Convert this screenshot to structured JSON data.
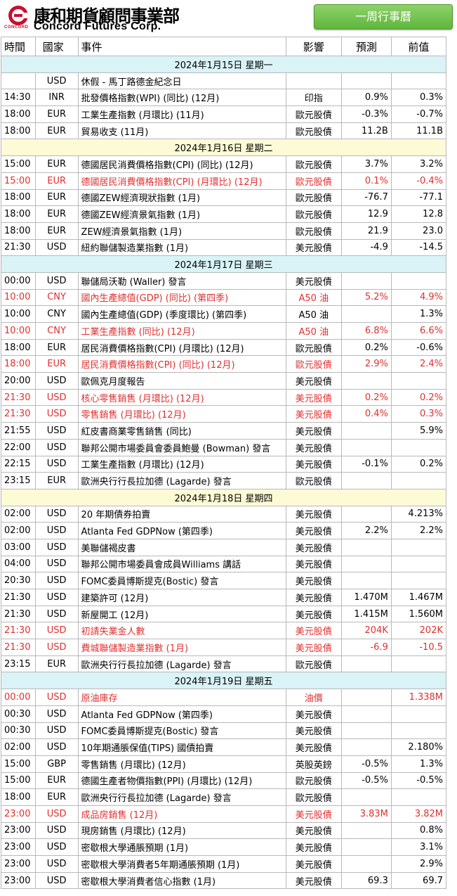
{
  "header": {
    "brand_cn": "康和期貨顧問事業部",
    "brand_en": "Concord Futures Corp.",
    "logo_text": "CONCORD",
    "title_badge": "一周行事曆"
  },
  "columns": [
    "時間",
    "國家",
    "事件",
    "影響",
    "預測",
    "前值"
  ],
  "days": [
    {
      "date": "2024年1月15日  星期一",
      "events": [
        {
          "time": "",
          "country": "USD",
          "event": "休假 - 馬丁路德金紀念日",
          "impact": "",
          "forecast": "",
          "previous": "",
          "highlight": false
        },
        {
          "time": "14:30",
          "country": "INR",
          "event": "批發價格指數(WPI) (同比) (12月)",
          "impact": "印指",
          "forecast": "0.9%",
          "previous": "0.3%",
          "highlight": false
        },
        {
          "time": "18:00",
          "country": "EUR",
          "event": "工業生產指數 (月環比) (11月)",
          "impact": "歐元股債",
          "forecast": "-0.3%",
          "previous": "-0.7%",
          "highlight": false
        },
        {
          "time": "18:00",
          "country": "EUR",
          "event": "貿易收支 (11月)",
          "impact": "歐元股債",
          "forecast": "11.2B",
          "previous": "11.1B",
          "highlight": false
        }
      ]
    },
    {
      "date": "2024年1月16日  星期二",
      "events": [
        {
          "time": "15:00",
          "country": "EUR",
          "event": "德國居民消費價格指數(CPI) (同比) (12月)",
          "impact": "歐元股債",
          "forecast": "3.7%",
          "previous": "3.2%",
          "highlight": false
        },
        {
          "time": "15:00",
          "country": "EUR",
          "event": "德國居民消費價格指數(CPI) (月環比) (12月)",
          "impact": "歐元股債",
          "forecast": "0.1%",
          "previous": "-0.4%",
          "highlight": true
        },
        {
          "time": "18:00",
          "country": "EUR",
          "event": "德國ZEW經濟現狀指數 (1月)",
          "impact": "歐元股債",
          "forecast": "-76.7",
          "previous": "-77.1",
          "highlight": false
        },
        {
          "time": "18:00",
          "country": "EUR",
          "event": "德國ZEW經濟景氣指數 (1月)",
          "impact": "歐元股債",
          "forecast": "12.9",
          "previous": "12.8",
          "highlight": false
        },
        {
          "time": "18:00",
          "country": "EUR",
          "event": "ZEW經濟景氣指數 (1月)",
          "impact": "歐元股債",
          "forecast": "21.9",
          "previous": "23.0",
          "highlight": false
        },
        {
          "time": "21:30",
          "country": "USD",
          "event": "紐約聯儲製造業指數 (1月)",
          "impact": "美元股債",
          "forecast": "-4.9",
          "previous": "-14.5",
          "highlight": false
        }
      ]
    },
    {
      "date": "2024年1月17日  星期三",
      "events": [
        {
          "time": "00:00",
          "country": "USD",
          "event": "聯儲局沃勒 (Waller) 發言",
          "impact": "美元股債",
          "forecast": "",
          "previous": "",
          "highlight": false
        },
        {
          "time": "10:00",
          "country": "CNY",
          "event": "國內生產總值(GDP) (同比) (第四季)",
          "impact": "A50 油",
          "forecast": "5.2%",
          "previous": "4.9%",
          "highlight": true
        },
        {
          "time": "10:00",
          "country": "CNY",
          "event": "國內生產總值(GDP) (季度環比) (第四季)",
          "impact": "A50 油",
          "forecast": "",
          "previous": "1.3%",
          "highlight": false
        },
        {
          "time": "10:00",
          "country": "CNY",
          "event": "工業生產指數 (同比) (12月)",
          "impact": "A50 油",
          "forecast": "6.8%",
          "previous": "6.6%",
          "highlight": true
        },
        {
          "time": "18:00",
          "country": "EUR",
          "event": "居民消費價格指數(CPI) (月環比) (12月)",
          "impact": "歐元股債",
          "forecast": "0.2%",
          "previous": "-0.6%",
          "highlight": false
        },
        {
          "time": "18:00",
          "country": "EUR",
          "event": "居民消費價格指數(CPI) (同比) (12月)",
          "impact": "歐元股債",
          "forecast": "2.9%",
          "previous": "2.4%",
          "highlight": true
        },
        {
          "time": "20:00",
          "country": "USD",
          "event": "歐佩克月度報告",
          "impact": "美元股債",
          "forecast": "",
          "previous": "",
          "highlight": false
        },
        {
          "time": "21:30",
          "country": "USD",
          "event": "核心零售銷售 (月環比) (12月)",
          "impact": "美元股債",
          "forecast": "0.2%",
          "previous": "0.2%",
          "highlight": true
        },
        {
          "time": "21:30",
          "country": "USD",
          "event": "零售銷售 (月環比) (12月)",
          "impact": "美元股債",
          "forecast": "0.4%",
          "previous": "0.3%",
          "highlight": true
        },
        {
          "time": "21:55",
          "country": "USD",
          "event": "紅皮書商業零售銷售 (同比)",
          "impact": "美元股債",
          "forecast": "",
          "previous": "5.9%",
          "highlight": false
        },
        {
          "time": "22:00",
          "country": "USD",
          "event": "聯邦公開市場委員會委員鮑曼 (Bowman) 發言",
          "impact": "美元股債",
          "forecast": "",
          "previous": "",
          "highlight": false
        },
        {
          "time": "22:15",
          "country": "USD",
          "event": "工業生產指數 (月環比) (12月)",
          "impact": "美元股債",
          "forecast": "-0.1%",
          "previous": "0.2%",
          "highlight": false
        },
        {
          "time": "23:15",
          "country": "EUR",
          "event": "歐洲央行行長拉加德 (Lagarde) 發言",
          "impact": "歐元股債",
          "forecast": "",
          "previous": "",
          "highlight": false
        }
      ]
    },
    {
      "date": "2024年1月18日  星期四",
      "events": [
        {
          "time": "02:00",
          "country": "USD",
          "event": "20 年期債券拍賣",
          "impact": "美元股債",
          "forecast": "",
          "previous": "4.213%",
          "highlight": false
        },
        {
          "time": "02:00",
          "country": "USD",
          "event": "Atlanta Fed GDPNow (第四季)",
          "impact": "美元股債",
          "forecast": "2.2%",
          "previous": "2.2%",
          "highlight": false
        },
        {
          "time": "03:00",
          "country": "USD",
          "event": "美聯儲褐皮書",
          "impact": "美元股債",
          "forecast": "",
          "previous": "",
          "highlight": false
        },
        {
          "time": "04:00",
          "country": "USD",
          "event": "聯邦公開市場委員會成員Williams 講話",
          "impact": "美元股債",
          "forecast": "",
          "previous": "",
          "highlight": false
        },
        {
          "time": "20:30",
          "country": "USD",
          "event": "FOMC委員博斯提克(Bostic) 發言",
          "impact": "美元股債",
          "forecast": "",
          "previous": "",
          "highlight": false
        },
        {
          "time": "21:30",
          "country": "USD",
          "event": "建築許可 (12月)",
          "impact": "美元股債",
          "forecast": "1.470M",
          "previous": "1.467M",
          "highlight": false
        },
        {
          "time": "21:30",
          "country": "USD",
          "event": "新屋開工 (12月)",
          "impact": "美元股債",
          "forecast": "1.415M",
          "previous": "1.560M",
          "highlight": false
        },
        {
          "time": "21:30",
          "country": "USD",
          "event": "初請失業金人數",
          "impact": "美元股債",
          "forecast": "204K",
          "previous": "202K",
          "highlight": true
        },
        {
          "time": "21:30",
          "country": "USD",
          "event": "費城聯儲製造業指數 (1月)",
          "impact": "美元股債",
          "forecast": "-6.9",
          "previous": "-10.5",
          "highlight": true
        },
        {
          "time": "23:15",
          "country": "EUR",
          "event": "歐洲央行行長拉加德 (Lagarde) 發言",
          "impact": "歐元股債",
          "forecast": "",
          "previous": "",
          "highlight": false
        }
      ]
    },
    {
      "date": "2024年1月19日  星期五",
      "events": [
        {
          "time": "00:00",
          "country": "USD",
          "event": "原油庫存",
          "impact": "油價",
          "forecast": "",
          "previous": "1.338M",
          "highlight": true
        },
        {
          "time": "00:30",
          "country": "USD",
          "event": "Atlanta Fed GDPNow (第四季)",
          "impact": "美元股債",
          "forecast": "",
          "previous": "",
          "highlight": false
        },
        {
          "time": "00:30",
          "country": "USD",
          "event": "FOMC委員博斯提克(Bostic) 發言",
          "impact": "美元股債",
          "forecast": "",
          "previous": "",
          "highlight": false
        },
        {
          "time": "02:00",
          "country": "USD",
          "event": "10年期通脹保值(TIPS) 國債拍賣",
          "impact": "美元股債",
          "forecast": "",
          "previous": "2.180%",
          "highlight": false
        },
        {
          "time": "15:00",
          "country": "GBP",
          "event": "零售銷售 (月環比) (12月)",
          "impact": "英股英鎊",
          "forecast": "-0.5%",
          "previous": "1.3%",
          "highlight": false
        },
        {
          "time": "15:00",
          "country": "EUR",
          "event": "德國生產者物價指數(PPI) (月環比) (12月)",
          "impact": "歐元股債",
          "forecast": "-0.5%",
          "previous": "-0.5%",
          "highlight": false
        },
        {
          "time": "18:00",
          "country": "EUR",
          "event": "歐洲央行行長拉加德 (Lagarde) 發言",
          "impact": "歐元股債",
          "forecast": "",
          "previous": "",
          "highlight": false
        },
        {
          "time": "23:00",
          "country": "USD",
          "event": "成品房銷售 (12月)",
          "impact": "美元股債",
          "forecast": "3.83M",
          "previous": "3.82M",
          "highlight": true
        },
        {
          "time": "23:00",
          "country": "USD",
          "event": "現房銷售 (月環比) (12月)",
          "impact": "美元股債",
          "forecast": "",
          "previous": "0.8%",
          "highlight": false
        },
        {
          "time": "23:00",
          "country": "USD",
          "event": "密歇根大學通脹預期 (1月)",
          "impact": "美元股債",
          "forecast": "",
          "previous": "3.1%",
          "highlight": false
        },
        {
          "time": "23:00",
          "country": "USD",
          "event": "密歇根大學消費者5年期通脹預期 (1月)",
          "impact": "美元股債",
          "forecast": "",
          "previous": "2.9%",
          "highlight": false
        },
        {
          "time": "23:00",
          "country": "USD",
          "event": "密歇根大學消費者信心指數 (1月)",
          "impact": "美元股債",
          "forecast": "69.3",
          "previous": "69.7",
          "highlight": false
        }
      ]
    }
  ]
}
